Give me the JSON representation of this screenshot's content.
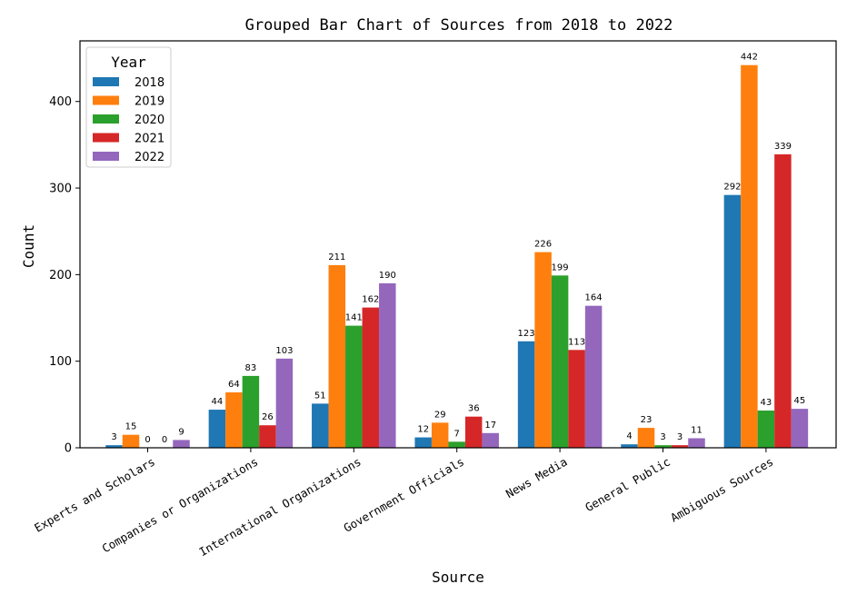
{
  "chart_data": {
    "type": "bar",
    "title": "Grouped Bar Chart of Sources from 2018 to 2022",
    "xlabel": "Source",
    "ylabel": "Count",
    "ylim": [
      0,
      470
    ],
    "yticks": [
      0,
      100,
      200,
      300,
      400
    ],
    "grid": false,
    "legend": {
      "title": "Year",
      "placement": "top-left"
    },
    "categories": [
      "Experts and Scholars",
      "Companies or Organizations",
      "International Organizations",
      "Government Officials",
      "News Media",
      "General Public",
      "Ambiguous Sources"
    ],
    "series": [
      {
        "name": "2018",
        "color": "#1f77b4",
        "values": [
          3,
          44,
          51,
          12,
          123,
          4,
          292
        ]
      },
      {
        "name": "2019",
        "color": "#ff7f0e",
        "values": [
          15,
          64,
          211,
          29,
          226,
          23,
          442
        ]
      },
      {
        "name": "2020",
        "color": "#2ca02c",
        "values": [
          0,
          83,
          141,
          7,
          199,
          3,
          43
        ]
      },
      {
        "name": "2021",
        "color": "#d62728",
        "values": [
          0,
          26,
          162,
          36,
          113,
          3,
          339
        ]
      },
      {
        "name": "2022",
        "color": "#9467bd",
        "values": [
          9,
          103,
          190,
          17,
          164,
          11,
          45
        ]
      }
    ]
  }
}
